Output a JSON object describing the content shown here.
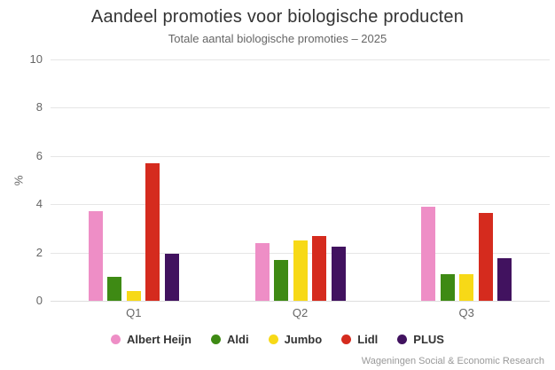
{
  "chart_data": {
    "type": "bar",
    "title": "Aandeel promoties voor biologische producten",
    "subtitle": "Totale aantal biologische promoties – 2025",
    "categories": [
      "Q1",
      "Q2",
      "Q3"
    ],
    "series": [
      {
        "name": "Albert Heijn",
        "color": "#ee8ec6",
        "values": [
          3.7,
          2.4,
          3.9
        ]
      },
      {
        "name": "Aldi",
        "color": "#3e8a14",
        "values": [
          1.0,
          1.7,
          1.1
        ]
      },
      {
        "name": "Jumbo",
        "color": "#f7d917",
        "values": [
          0.4,
          2.5,
          1.1
        ]
      },
      {
        "name": "Lidl",
        "color": "#d52b1e",
        "values": [
          5.7,
          2.7,
          3.65
        ]
      },
      {
        "name": "PLUS",
        "color": "#41125f",
        "values": [
          1.95,
          2.25,
          1.75
        ]
      }
    ],
    "xlabel": "",
    "ylabel": "%",
    "ylim": [
      0,
      10
    ],
    "yticks": [
      0,
      2,
      4,
      6,
      8,
      10
    ],
    "grid": true,
    "legend_position": "bottom"
  },
  "footer": {
    "credit": "Wageningen Social & Economic Research"
  },
  "colors": {
    "background": "#ffffff",
    "grid": "#e6e6e6",
    "axis": "#dedede",
    "title": "#333333",
    "muted": "#666666",
    "credit": "#999999"
  }
}
